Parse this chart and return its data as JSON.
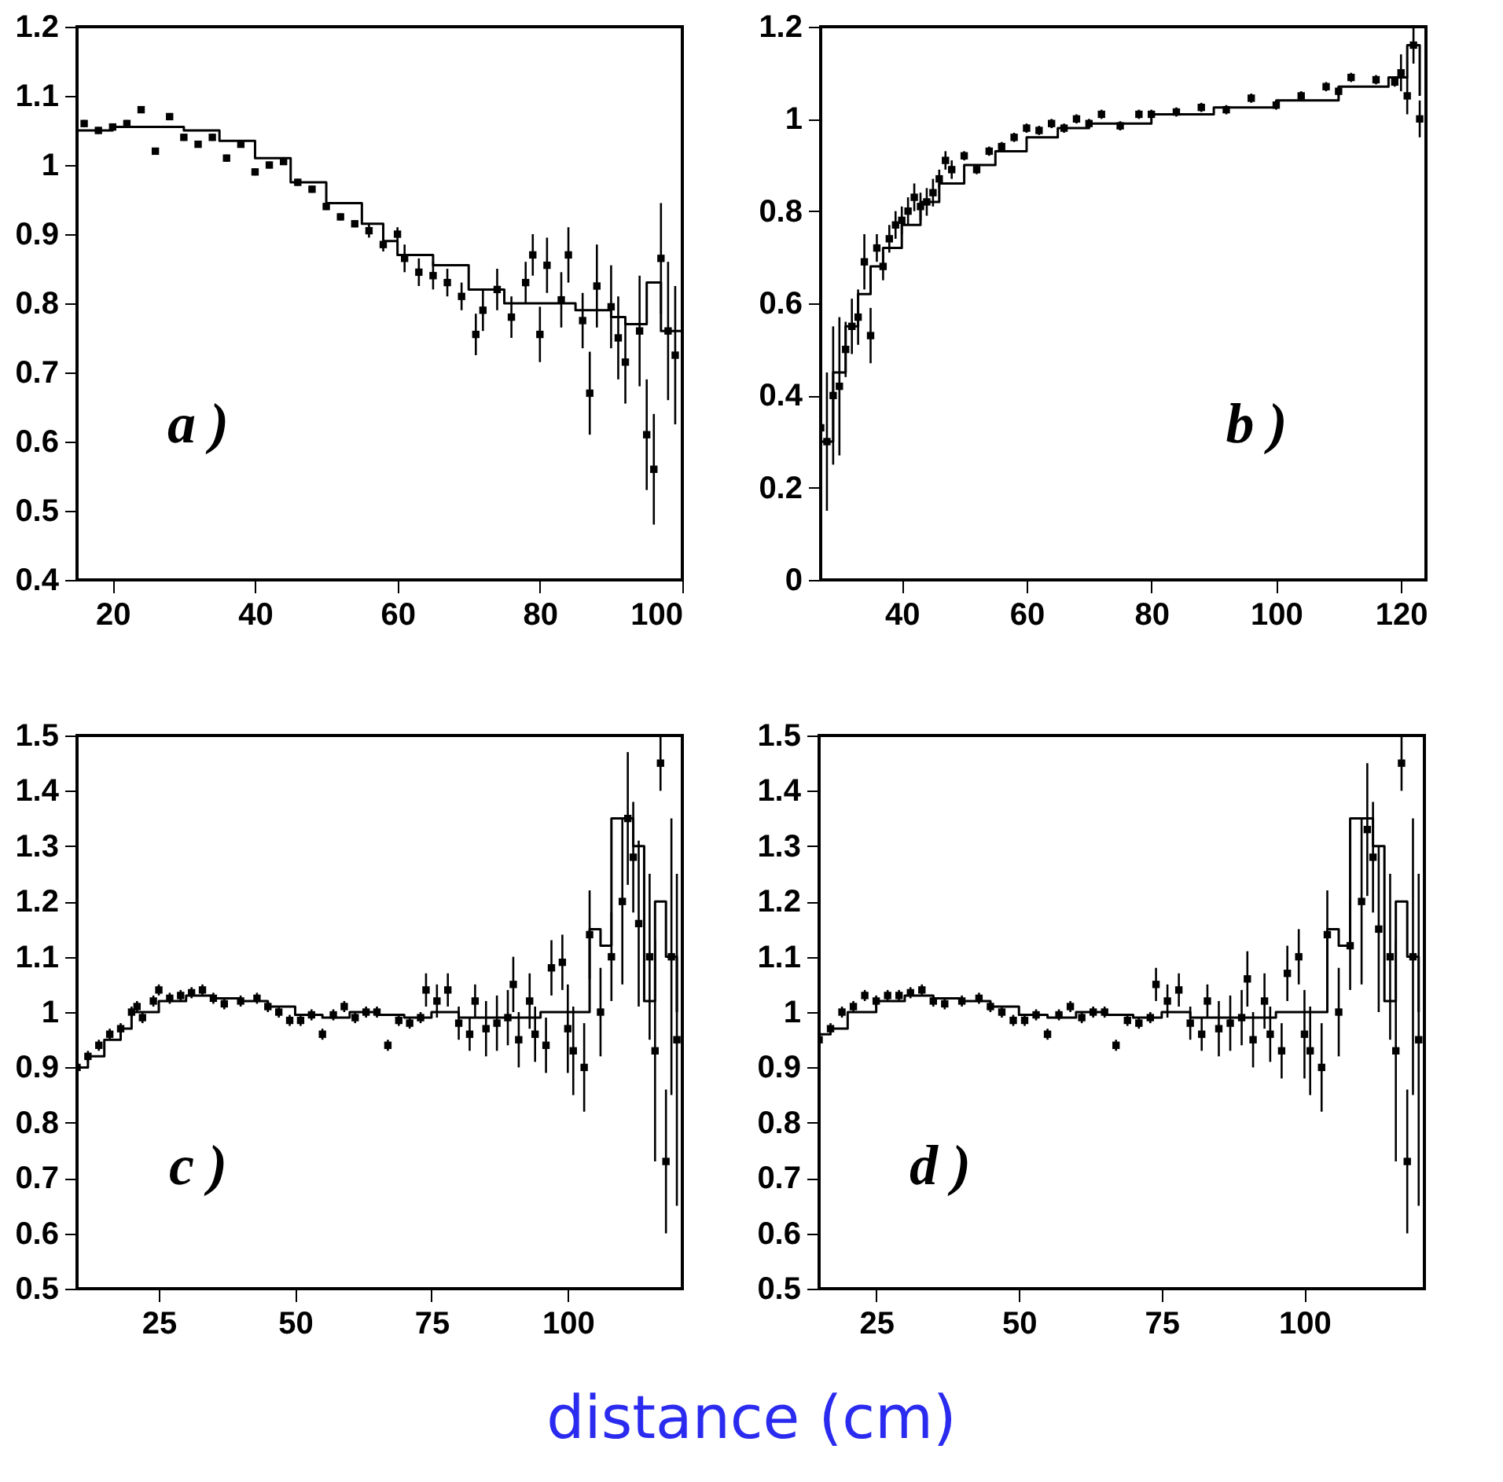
{
  "chart_data": [
    {
      "type": "scatter",
      "annotations": [
        "a )"
      ],
      "xlim": [
        15,
        100
      ],
      "ylim": [
        0.4,
        1.2
      ],
      "xticks": [
        20,
        40,
        60,
        80,
        100
      ],
      "yticks": [
        0.4,
        0.5,
        0.6,
        0.7,
        0.8,
        0.9,
        1,
        1.1,
        1.2
      ],
      "series": [
        {
          "color": "#000000",
          "marker": "square",
          "x": [
            16,
            18,
            20,
            22,
            24,
            26,
            28,
            30,
            32,
            34,
            36,
            38,
            40,
            42,
            44,
            46,
            48,
            50,
            52,
            54,
            56,
            58,
            60,
            61,
            63,
            65,
            67,
            69,
            71,
            72,
            74,
            76,
            78,
            79,
            80,
            81,
            83,
            84,
            86,
            87,
            88,
            90,
            91,
            92,
            94,
            95,
            96,
            97,
            98,
            99
          ],
          "values": [
            1.06,
            1.05,
            1.055,
            1.06,
            1.08,
            1.02,
            1.07,
            1.04,
            1.03,
            1.04,
            1.01,
            1.03,
            0.99,
            1.0,
            1.005,
            0.975,
            0.965,
            0.94,
            0.925,
            0.915,
            0.905,
            0.885,
            0.9,
            0.865,
            0.845,
            0.84,
            0.83,
            0.81,
            0.755,
            0.79,
            0.82,
            0.78,
            0.83,
            0.87,
            0.755,
            0.855,
            0.805,
            0.87,
            0.775,
            0.67,
            0.825,
            0.795,
            0.75,
            0.715,
            0.76,
            0.61,
            0.56,
            0.865,
            0.76,
            0.725
          ],
          "errors": [
            0.005,
            0.005,
            0.005,
            0.005,
            0.005,
            0.005,
            0.005,
            0.005,
            0.005,
            0.005,
            0.005,
            0.005,
            0.005,
            0.005,
            0.005,
            0.005,
            0.005,
            0.005,
            0.005,
            0.005,
            0.01,
            0.01,
            0.01,
            0.02,
            0.02,
            0.02,
            0.02,
            0.02,
            0.03,
            0.03,
            0.03,
            0.03,
            0.03,
            0.03,
            0.04,
            0.04,
            0.04,
            0.04,
            0.04,
            0.06,
            0.06,
            0.06,
            0.06,
            0.06,
            0.08,
            0.08,
            0.08,
            0.08,
            0.1,
            0.1
          ]
        },
        {
          "type": "step",
          "color": "#000000",
          "x": [
            15,
            20,
            25,
            30,
            35,
            40,
            45,
            50,
            55,
            58,
            60,
            65,
            70,
            75,
            80,
            85,
            90,
            92,
            95,
            97,
            100
          ],
          "values": [
            1.05,
            1.055,
            1.055,
            1.05,
            1.035,
            1.01,
            0.975,
            0.945,
            0.915,
            0.89,
            0.87,
            0.855,
            0.82,
            0.8,
            0.8,
            0.79,
            0.78,
            0.77,
            0.83,
            0.76,
            0.8
          ]
        }
      ]
    },
    {
      "type": "scatter",
      "annotations": [
        "b )"
      ],
      "xlim": [
        27,
        124
      ],
      "ylim": [
        0,
        1.2
      ],
      "xticks": [
        40,
        60,
        80,
        100,
        120
      ],
      "yticks": [
        0,
        0.2,
        0.4,
        0.6,
        0.8,
        1,
        1.2
      ],
      "series": [
        {
          "color": "#000000",
          "marker": "square",
          "x": [
            27,
            28,
            29,
            30,
            31,
            32,
            33,
            34,
            35,
            36,
            37,
            38,
            39,
            40,
            41,
            42,
            43,
            44,
            45,
            46,
            47,
            48,
            50,
            52,
            54,
            56,
            58,
            60,
            62,
            64,
            66,
            68,
            70,
            72,
            75,
            78,
            80,
            84,
            88,
            92,
            96,
            100,
            104,
            108,
            110,
            112,
            116,
            119,
            120,
            121,
            122,
            123
          ],
          "values": [
            0.33,
            0.3,
            0.4,
            0.42,
            0.5,
            0.55,
            0.57,
            0.69,
            0.53,
            0.72,
            0.68,
            0.74,
            0.77,
            0.78,
            0.8,
            0.83,
            0.81,
            0.82,
            0.84,
            0.87,
            0.91,
            0.89,
            0.92,
            0.89,
            0.93,
            0.94,
            0.96,
            0.98,
            0.975,
            0.99,
            0.98,
            1.0,
            0.99,
            1.01,
            0.985,
            1.01,
            1.01,
            1.015,
            1.025,
            1.02,
            1.045,
            1.03,
            1.05,
            1.07,
            1.06,
            1.09,
            1.085,
            1.08,
            1.1,
            1.05,
            1.16,
            1.0
          ],
          "errors": [
            0.15,
            0.15,
            0.15,
            0.15,
            0.06,
            0.06,
            0.06,
            0.06,
            0.06,
            0.03,
            0.03,
            0.03,
            0.03,
            0.03,
            0.03,
            0.03,
            0.03,
            0.03,
            0.03,
            0.02,
            0.02,
            0.02,
            0.01,
            0.01,
            0.01,
            0.01,
            0.01,
            0.01,
            0.01,
            0.01,
            0.01,
            0.01,
            0.01,
            0.01,
            0.01,
            0.01,
            0.01,
            0.01,
            0.01,
            0.01,
            0.01,
            0.01,
            0.01,
            0.01,
            0.01,
            0.01,
            0.01,
            0.01,
            0.04,
            0.04,
            0.04,
            0.04
          ]
        },
        {
          "type": "step",
          "color": "#000000",
          "x": [
            27,
            29,
            31,
            33,
            35,
            37,
            40,
            43,
            46,
            50,
            55,
            60,
            65,
            70,
            80,
            90,
            100,
            110,
            118,
            121,
            123
          ],
          "values": [
            0.3,
            0.45,
            0.55,
            0.62,
            0.68,
            0.72,
            0.77,
            0.82,
            0.86,
            0.9,
            0.93,
            0.96,
            0.98,
            0.99,
            1.01,
            1.025,
            1.04,
            1.07,
            1.09,
            1.16,
            1.05
          ]
        }
      ]
    },
    {
      "type": "scatter",
      "annotations": [
        "c )"
      ],
      "xlabel": "distance (cm)",
      "xlim": [
        10,
        121
      ],
      "ylim": [
        0.5,
        1.5
      ],
      "xticks": [
        25,
        50,
        75,
        100
      ],
      "yticks": [
        0.5,
        0.6,
        0.7,
        0.8,
        0.9,
        1,
        1.1,
        1.2,
        1.3,
        1.4,
        1.5
      ],
      "series": [
        {
          "color": "#000000",
          "marker": "square",
          "x": [
            10,
            12,
            14,
            16,
            18,
            20,
            21,
            22,
            24,
            25,
            27,
            29,
            31,
            33,
            35,
            37,
            40,
            43,
            45,
            47,
            49,
            51,
            53,
            55,
            57,
            59,
            61,
            63,
            65,
            67,
            69,
            71,
            73,
            74,
            76,
            78,
            80,
            82,
            83,
            85,
            87,
            89,
            90,
            91,
            93,
            94,
            96,
            97,
            99,
            100,
            101,
            103,
            104,
            106,
            108,
            110,
            111,
            112,
            113,
            115,
            116,
            117,
            118,
            119,
            120
          ],
          "values": [
            0.9,
            0.92,
            0.94,
            0.96,
            0.97,
            1.0,
            1.01,
            0.99,
            1.02,
            1.04,
            1.025,
            1.03,
            1.035,
            1.04,
            1.025,
            1.015,
            1.02,
            1.025,
            1.01,
            1.0,
            0.985,
            0.985,
            0.995,
            0.96,
            0.995,
            1.01,
            0.99,
            1.0,
            1.0,
            0.94,
            0.985,
            0.98,
            0.99,
            1.04,
            1.02,
            1.04,
            0.98,
            0.96,
            1.02,
            0.97,
            0.98,
            0.99,
            1.05,
            0.95,
            1.02,
            0.96,
            0.94,
            1.08,
            1.09,
            0.97,
            0.93,
            0.9,
            1.14,
            1.0,
            1.1,
            1.2,
            1.35,
            1.28,
            1.16,
            1.1,
            0.93,
            1.45,
            0.73,
            1.1,
            0.95
          ],
          "errors": [
            0.01,
            0.01,
            0.01,
            0.01,
            0.01,
            0.01,
            0.01,
            0.01,
            0.01,
            0.01,
            0.01,
            0.01,
            0.01,
            0.01,
            0.01,
            0.01,
            0.01,
            0.01,
            0.01,
            0.01,
            0.01,
            0.01,
            0.01,
            0.01,
            0.01,
            0.01,
            0.01,
            0.01,
            0.01,
            0.01,
            0.01,
            0.01,
            0.01,
            0.03,
            0.03,
            0.03,
            0.03,
            0.03,
            0.03,
            0.05,
            0.05,
            0.05,
            0.05,
            0.05,
            0.05,
            0.05,
            0.05,
            0.05,
            0.05,
            0.08,
            0.08,
            0.08,
            0.08,
            0.08,
            0.08,
            0.15,
            0.12,
            0.1,
            0.15,
            0.15,
            0.2,
            0.05,
            0.13,
            0.25,
            0.3
          ]
        },
        {
          "type": "step",
          "color": "#000000",
          "x": [
            10,
            12,
            15,
            18,
            20,
            25,
            30,
            35,
            40,
            45,
            50,
            55,
            60,
            65,
            70,
            75,
            80,
            85,
            90,
            95,
            100,
            104,
            106,
            108,
            110,
            112,
            114,
            116,
            118,
            120
          ],
          "values": [
            0.9,
            0.92,
            0.95,
            0.97,
            1.0,
            1.02,
            1.03,
            1.025,
            1.02,
            1.01,
            0.995,
            0.99,
            1.0,
            0.995,
            0.99,
            1.0,
            0.99,
            0.99,
            0.99,
            1.0,
            1.0,
            1.15,
            1.12,
            1.35,
            1.35,
            1.3,
            1.02,
            1.2,
            1.1,
            1.0
          ]
        }
      ]
    },
    {
      "type": "scatter",
      "annotations": [
        "d )"
      ],
      "xlim": [
        15,
        121
      ],
      "ylim": [
        0.5,
        1.5
      ],
      "xticks": [
        25,
        50,
        75,
        100
      ],
      "yticks": [
        0.5,
        0.6,
        0.7,
        0.8,
        0.9,
        1,
        1.1,
        1.2,
        1.3,
        1.4,
        1.5
      ],
      "series": [
        {
          "color": "#000000",
          "marker": "square",
          "x": [
            15,
            17,
            19,
            21,
            23,
            25,
            27,
            29,
            31,
            33,
            35,
            37,
            40,
            43,
            45,
            47,
            49,
            51,
            53,
            55,
            57,
            59,
            61,
            63,
            65,
            67,
            69,
            71,
            73,
            74,
            76,
            78,
            80,
            82,
            83,
            85,
            87,
            89,
            90,
            91,
            93,
            94,
            96,
            97,
            99,
            100,
            101,
            103,
            104,
            106,
            108,
            110,
            111,
            112,
            113,
            115,
            116,
            117,
            118,
            119,
            120
          ],
          "values": [
            0.95,
            0.97,
            1.0,
            1.01,
            1.03,
            1.02,
            1.03,
            1.03,
            1.035,
            1.04,
            1.02,
            1.015,
            1.02,
            1.025,
            1.01,
            1.0,
            0.985,
            0.985,
            0.995,
            0.96,
            0.995,
            1.01,
            0.99,
            1.0,
            1.0,
            0.94,
            0.985,
            0.98,
            0.99,
            1.05,
            1.02,
            1.04,
            0.98,
            0.96,
            1.02,
            0.97,
            0.98,
            0.99,
            1.06,
            0.95,
            1.02,
            0.96,
            0.93,
            1.07,
            1.1,
            0.96,
            0.93,
            0.9,
            1.14,
            1.0,
            1.12,
            1.2,
            1.33,
            1.28,
            1.15,
            1.1,
            0.93,
            1.45,
            0.73,
            1.1,
            0.95
          ],
          "errors": [
            0.01,
            0.01,
            0.01,
            0.01,
            0.01,
            0.01,
            0.01,
            0.01,
            0.01,
            0.01,
            0.01,
            0.01,
            0.01,
            0.01,
            0.01,
            0.01,
            0.01,
            0.01,
            0.01,
            0.01,
            0.01,
            0.01,
            0.01,
            0.01,
            0.01,
            0.01,
            0.01,
            0.01,
            0.01,
            0.03,
            0.03,
            0.03,
            0.03,
            0.03,
            0.03,
            0.05,
            0.05,
            0.05,
            0.05,
            0.05,
            0.05,
            0.05,
            0.05,
            0.05,
            0.05,
            0.08,
            0.08,
            0.08,
            0.08,
            0.08,
            0.08,
            0.15,
            0.12,
            0.1,
            0.15,
            0.15,
            0.2,
            0.05,
            0.13,
            0.25,
            0.3
          ]
        },
        {
          "type": "step",
          "color": "#000000",
          "x": [
            15,
            17,
            20,
            25,
            30,
            35,
            40,
            45,
            50,
            55,
            60,
            65,
            70,
            75,
            80,
            85,
            90,
            95,
            100,
            104,
            106,
            108,
            110,
            112,
            114,
            116,
            118,
            120
          ],
          "values": [
            0.96,
            0.97,
            1.0,
            1.02,
            1.03,
            1.025,
            1.02,
            1.01,
            0.995,
            0.99,
            1.0,
            0.995,
            0.99,
            1.0,
            0.99,
            0.99,
            0.99,
            1.0,
            1.0,
            1.15,
            1.12,
            1.35,
            1.35,
            1.3,
            1.02,
            1.2,
            1.1,
            1.0
          ]
        }
      ]
    }
  ]
}
